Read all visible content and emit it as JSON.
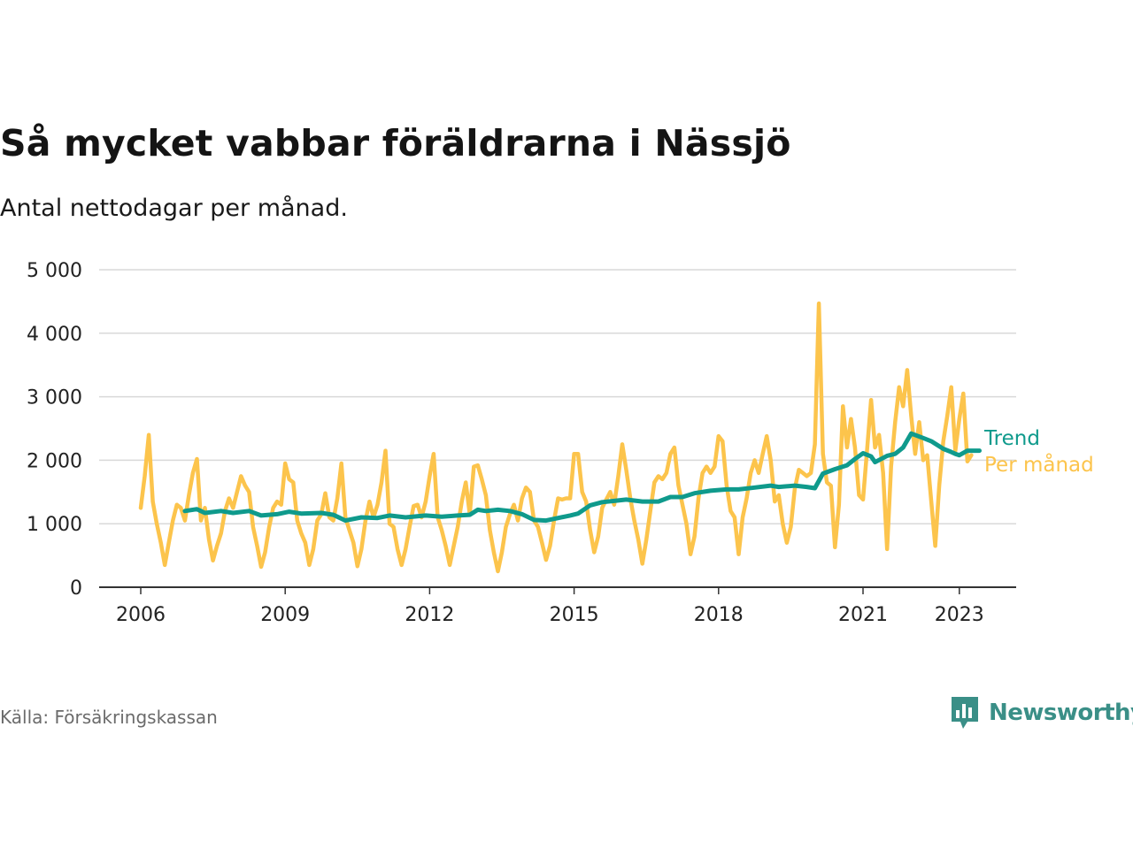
{
  "title": "Så mycket vabbar föräldrarna i Nässjö",
  "subtitle": "Antal nettodagar per månad.",
  "source": "Källa: Försäkringskassan",
  "brand": "Newsworthy",
  "colors": {
    "monthly": "#fcc44c",
    "trend": "#0f9a8c",
    "grid": "#d9d9d9",
    "axis": "#333333",
    "brand": "#3a8f87"
  },
  "chart_data": {
    "type": "line",
    "title": "Så mycket vabbar föräldrarna i Nässjö",
    "subtitle": "Antal nettodagar per månad.",
    "xlabel": "",
    "ylabel": "",
    "xlim": [
      "2006-01",
      "2023-06"
    ],
    "ylim": [
      0,
      5000
    ],
    "grid": true,
    "x_ticks": [
      {
        "date": "2006-01",
        "label": "2006"
      },
      {
        "date": "2009-01",
        "label": "2009"
      },
      {
        "date": "2012-01",
        "label": "2012"
      },
      {
        "date": "2015-01",
        "label": "2015"
      },
      {
        "date": "2018-01",
        "label": "2018"
      },
      {
        "date": "2021-01",
        "label": "2021"
      },
      {
        "date": "2023-01",
        "label": "2023"
      }
    ],
    "y_ticks": [
      {
        "value": 0,
        "label": "0"
      },
      {
        "value": 1000,
        "label": "1 000"
      },
      {
        "value": 2000,
        "label": "2 000"
      },
      {
        "value": 3000,
        "label": "3 000"
      },
      {
        "value": 4000,
        "label": "4 000"
      },
      {
        "value": 5000,
        "label": "5 000"
      }
    ],
    "series": [
      {
        "name": "Per månad",
        "color": "#fcc44c",
        "points": [
          [
            "2006-01",
            1250
          ],
          [
            "2006-02",
            1750
          ],
          [
            "2006-03",
            2400
          ],
          [
            "2006-04",
            1350
          ],
          [
            "2006-05",
            1000
          ],
          [
            "2006-06",
            700
          ],
          [
            "2006-07",
            350
          ],
          [
            "2006-08",
            700
          ],
          [
            "2006-09",
            1050
          ],
          [
            "2006-10",
            1300
          ],
          [
            "2006-11",
            1250
          ],
          [
            "2006-12",
            1050
          ],
          [
            "2007-01",
            1450
          ],
          [
            "2007-02",
            1800
          ],
          [
            "2007-03",
            2020
          ],
          [
            "2007-04",
            1050
          ],
          [
            "2007-05",
            1250
          ],
          [
            "2007-06",
            750
          ],
          [
            "2007-07",
            420
          ],
          [
            "2007-08",
            650
          ],
          [
            "2007-09",
            850
          ],
          [
            "2007-10",
            1200
          ],
          [
            "2007-11",
            1400
          ],
          [
            "2007-12",
            1250
          ],
          [
            "2008-01",
            1500
          ],
          [
            "2008-02",
            1750
          ],
          [
            "2008-03",
            1600
          ],
          [
            "2008-04",
            1500
          ],
          [
            "2008-05",
            950
          ],
          [
            "2008-06",
            650
          ],
          [
            "2008-07",
            320
          ],
          [
            "2008-08",
            550
          ],
          [
            "2008-09",
            950
          ],
          [
            "2008-10",
            1250
          ],
          [
            "2008-11",
            1350
          ],
          [
            "2008-12",
            1300
          ],
          [
            "2009-01",
            1950
          ],
          [
            "2009-02",
            1700
          ],
          [
            "2009-03",
            1650
          ],
          [
            "2009-04",
            1050
          ],
          [
            "2009-05",
            850
          ],
          [
            "2009-06",
            700
          ],
          [
            "2009-07",
            350
          ],
          [
            "2009-08",
            600
          ],
          [
            "2009-09",
            1050
          ],
          [
            "2009-10",
            1150
          ],
          [
            "2009-11",
            1480
          ],
          [
            "2009-12",
            1100
          ],
          [
            "2010-01",
            1050
          ],
          [
            "2010-02",
            1400
          ],
          [
            "2010-03",
            1950
          ],
          [
            "2010-04",
            1100
          ],
          [
            "2010-05",
            900
          ],
          [
            "2010-06",
            700
          ],
          [
            "2010-07",
            330
          ],
          [
            "2010-08",
            600
          ],
          [
            "2010-09",
            1050
          ],
          [
            "2010-10",
            1350
          ],
          [
            "2010-11",
            1100
          ],
          [
            "2010-12",
            1300
          ],
          [
            "2011-01",
            1650
          ],
          [
            "2011-02",
            2150
          ],
          [
            "2011-03",
            1000
          ],
          [
            "2011-04",
            950
          ],
          [
            "2011-05",
            600
          ],
          [
            "2011-06",
            350
          ],
          [
            "2011-07",
            600
          ],
          [
            "2011-08",
            950
          ],
          [
            "2011-09",
            1280
          ],
          [
            "2011-10",
            1300
          ],
          [
            "2011-11",
            1100
          ],
          [
            "2011-12",
            1350
          ],
          [
            "2012-01",
            1750
          ],
          [
            "2012-02",
            2100
          ],
          [
            "2012-03",
            1100
          ],
          [
            "2012-04",
            900
          ],
          [
            "2012-05",
            650
          ],
          [
            "2012-06",
            350
          ],
          [
            "2012-07",
            650
          ],
          [
            "2012-08",
            950
          ],
          [
            "2012-09",
            1350
          ],
          [
            "2012-10",
            1650
          ],
          [
            "2012-11",
            1150
          ],
          [
            "2012-12",
            1900
          ],
          [
            "2013-01",
            1920
          ],
          [
            "2013-02",
            1700
          ],
          [
            "2013-03",
            1450
          ],
          [
            "2013-04",
            900
          ],
          [
            "2013-05",
            550
          ],
          [
            "2013-06",
            250
          ],
          [
            "2013-07",
            550
          ],
          [
            "2013-08",
            950
          ],
          [
            "2013-09",
            1150
          ],
          [
            "2013-10",
            1300
          ],
          [
            "2013-11",
            1050
          ],
          [
            "2013-12",
            1400
          ],
          [
            "2014-01",
            1570
          ],
          [
            "2014-02",
            1500
          ],
          [
            "2014-03",
            1050
          ],
          [
            "2014-04",
            950
          ],
          [
            "2014-05",
            700
          ],
          [
            "2014-06",
            430
          ],
          [
            "2014-07",
            650
          ],
          [
            "2014-08",
            1050
          ],
          [
            "2014-09",
            1400
          ],
          [
            "2014-10",
            1380
          ],
          [
            "2014-11",
            1400
          ],
          [
            "2014-12",
            1400
          ],
          [
            "2015-01",
            2100
          ],
          [
            "2015-02",
            2100
          ],
          [
            "2015-03",
            1500
          ],
          [
            "2015-04",
            1350
          ],
          [
            "2015-05",
            900
          ],
          [
            "2015-06",
            550
          ],
          [
            "2015-07",
            800
          ],
          [
            "2015-08",
            1250
          ],
          [
            "2015-09",
            1380
          ],
          [
            "2015-10",
            1500
          ],
          [
            "2015-11",
            1300
          ],
          [
            "2015-12",
            1750
          ],
          [
            "2016-01",
            2250
          ],
          [
            "2016-02",
            1850
          ],
          [
            "2016-03",
            1400
          ],
          [
            "2016-04",
            1050
          ],
          [
            "2016-05",
            750
          ],
          [
            "2016-06",
            370
          ],
          [
            "2016-07",
            750
          ],
          [
            "2016-08",
            1200
          ],
          [
            "2016-09",
            1650
          ],
          [
            "2016-10",
            1750
          ],
          [
            "2016-11",
            1700
          ],
          [
            "2016-12",
            1800
          ],
          [
            "2017-01",
            2100
          ],
          [
            "2017-02",
            2200
          ],
          [
            "2017-03",
            1600
          ],
          [
            "2017-04",
            1300
          ],
          [
            "2017-05",
            1000
          ],
          [
            "2017-06",
            520
          ],
          [
            "2017-07",
            800
          ],
          [
            "2017-08",
            1400
          ],
          [
            "2017-09",
            1800
          ],
          [
            "2017-10",
            1900
          ],
          [
            "2017-11",
            1800
          ],
          [
            "2017-12",
            1900
          ],
          [
            "2018-01",
            2380
          ],
          [
            "2018-02",
            2300
          ],
          [
            "2018-03",
            1600
          ],
          [
            "2018-04",
            1200
          ],
          [
            "2018-05",
            1100
          ],
          [
            "2018-06",
            520
          ],
          [
            "2018-07",
            1100
          ],
          [
            "2018-08",
            1400
          ],
          [
            "2018-09",
            1800
          ],
          [
            "2018-10",
            2000
          ],
          [
            "2018-11",
            1800
          ],
          [
            "2018-12",
            2100
          ],
          [
            "2019-01",
            2380
          ],
          [
            "2019-02",
            2000
          ],
          [
            "2019-03",
            1350
          ],
          [
            "2019-04",
            1450
          ],
          [
            "2019-05",
            1000
          ],
          [
            "2019-06",
            700
          ],
          [
            "2019-07",
            950
          ],
          [
            "2019-08",
            1550
          ],
          [
            "2019-09",
            1850
          ],
          [
            "2019-10",
            1800
          ],
          [
            "2019-11",
            1750
          ],
          [
            "2019-12",
            1800
          ],
          [
            "2020-01",
            2250
          ],
          [
            "2020-02",
            4470
          ],
          [
            "2020-03",
            2100
          ],
          [
            "2020-04",
            1650
          ],
          [
            "2020-05",
            1600
          ],
          [
            "2020-06",
            630
          ],
          [
            "2020-07",
            1300
          ],
          [
            "2020-08",
            2850
          ],
          [
            "2020-09",
            2200
          ],
          [
            "2020-10",
            2650
          ],
          [
            "2020-11",
            2200
          ],
          [
            "2020-12",
            1450
          ],
          [
            "2021-01",
            1380
          ],
          [
            "2021-02",
            2150
          ],
          [
            "2021-03",
            2950
          ],
          [
            "2021-04",
            2200
          ],
          [
            "2021-05",
            2400
          ],
          [
            "2021-06",
            1800
          ],
          [
            "2021-07",
            600
          ],
          [
            "2021-08",
            1900
          ],
          [
            "2021-09",
            2600
          ],
          [
            "2021-10",
            3150
          ],
          [
            "2021-11",
            2850
          ],
          [
            "2021-12",
            3420
          ],
          [
            "2022-01",
            2700
          ],
          [
            "2022-02",
            2100
          ],
          [
            "2022-03",
            2600
          ],
          [
            "2022-04",
            2000
          ],
          [
            "2022-05",
            2080
          ],
          [
            "2022-06",
            1350
          ],
          [
            "2022-07",
            650
          ],
          [
            "2022-08",
            1600
          ],
          [
            "2022-09",
            2300
          ],
          [
            "2022-10",
            2700
          ],
          [
            "2022-11",
            3150
          ],
          [
            "2022-12",
            2150
          ],
          [
            "2023-01",
            2650
          ],
          [
            "2023-02",
            3050
          ],
          [
            "2023-03",
            1980
          ],
          [
            "2023-04",
            2080
          ]
        ]
      },
      {
        "name": "Trend",
        "color": "#0f9a8c",
        "points": [
          [
            "2006-12",
            1200
          ],
          [
            "2007-03",
            1230
          ],
          [
            "2007-05",
            1170
          ],
          [
            "2007-09",
            1200
          ],
          [
            "2007-12",
            1170
          ],
          [
            "2008-04",
            1200
          ],
          [
            "2008-07",
            1130
          ],
          [
            "2008-11",
            1150
          ],
          [
            "2009-02",
            1190
          ],
          [
            "2009-05",
            1160
          ],
          [
            "2009-10",
            1170
          ],
          [
            "2010-01",
            1140
          ],
          [
            "2010-04",
            1050
          ],
          [
            "2010-08",
            1100
          ],
          [
            "2010-12",
            1090
          ],
          [
            "2011-03",
            1130
          ],
          [
            "2011-07",
            1100
          ],
          [
            "2011-12",
            1130
          ],
          [
            "2012-04",
            1110
          ],
          [
            "2012-08",
            1130
          ],
          [
            "2012-11",
            1140
          ],
          [
            "2013-01",
            1220
          ],
          [
            "2013-03",
            1200
          ],
          [
            "2013-06",
            1220
          ],
          [
            "2013-09",
            1200
          ],
          [
            "2013-12",
            1150
          ],
          [
            "2014-03",
            1060
          ],
          [
            "2014-06",
            1050
          ],
          [
            "2014-12",
            1130
          ],
          [
            "2015-02",
            1160
          ],
          [
            "2015-05",
            1290
          ],
          [
            "2015-08",
            1340
          ],
          [
            "2015-11",
            1360
          ],
          [
            "2016-02",
            1380
          ],
          [
            "2016-06",
            1350
          ],
          [
            "2016-10",
            1350
          ],
          [
            "2017-01",
            1420
          ],
          [
            "2017-04",
            1420
          ],
          [
            "2017-07",
            1480
          ],
          [
            "2017-11",
            1520
          ],
          [
            "2018-03",
            1540
          ],
          [
            "2018-06",
            1540
          ],
          [
            "2018-10",
            1570
          ],
          [
            "2019-02",
            1600
          ],
          [
            "2019-04",
            1580
          ],
          [
            "2019-08",
            1600
          ],
          [
            "2019-11",
            1580
          ],
          [
            "2020-01",
            1560
          ],
          [
            "2020-03",
            1790
          ],
          [
            "2020-06",
            1860
          ],
          [
            "2020-09",
            1920
          ],
          [
            "2020-11",
            2020
          ],
          [
            "2021-01",
            2110
          ],
          [
            "2021-03",
            2060
          ],
          [
            "2021-04",
            1970
          ],
          [
            "2021-07",
            2070
          ],
          [
            "2021-09",
            2100
          ],
          [
            "2021-11",
            2200
          ],
          [
            "2022-01",
            2420
          ],
          [
            "2022-04",
            2350
          ],
          [
            "2022-06",
            2300
          ],
          [
            "2022-09",
            2180
          ],
          [
            "2022-11",
            2130
          ],
          [
            "2022-12",
            2100
          ],
          [
            "2023-01",
            2080
          ],
          [
            "2023-03",
            2150
          ],
          [
            "2023-06",
            2150
          ]
        ]
      }
    ]
  }
}
